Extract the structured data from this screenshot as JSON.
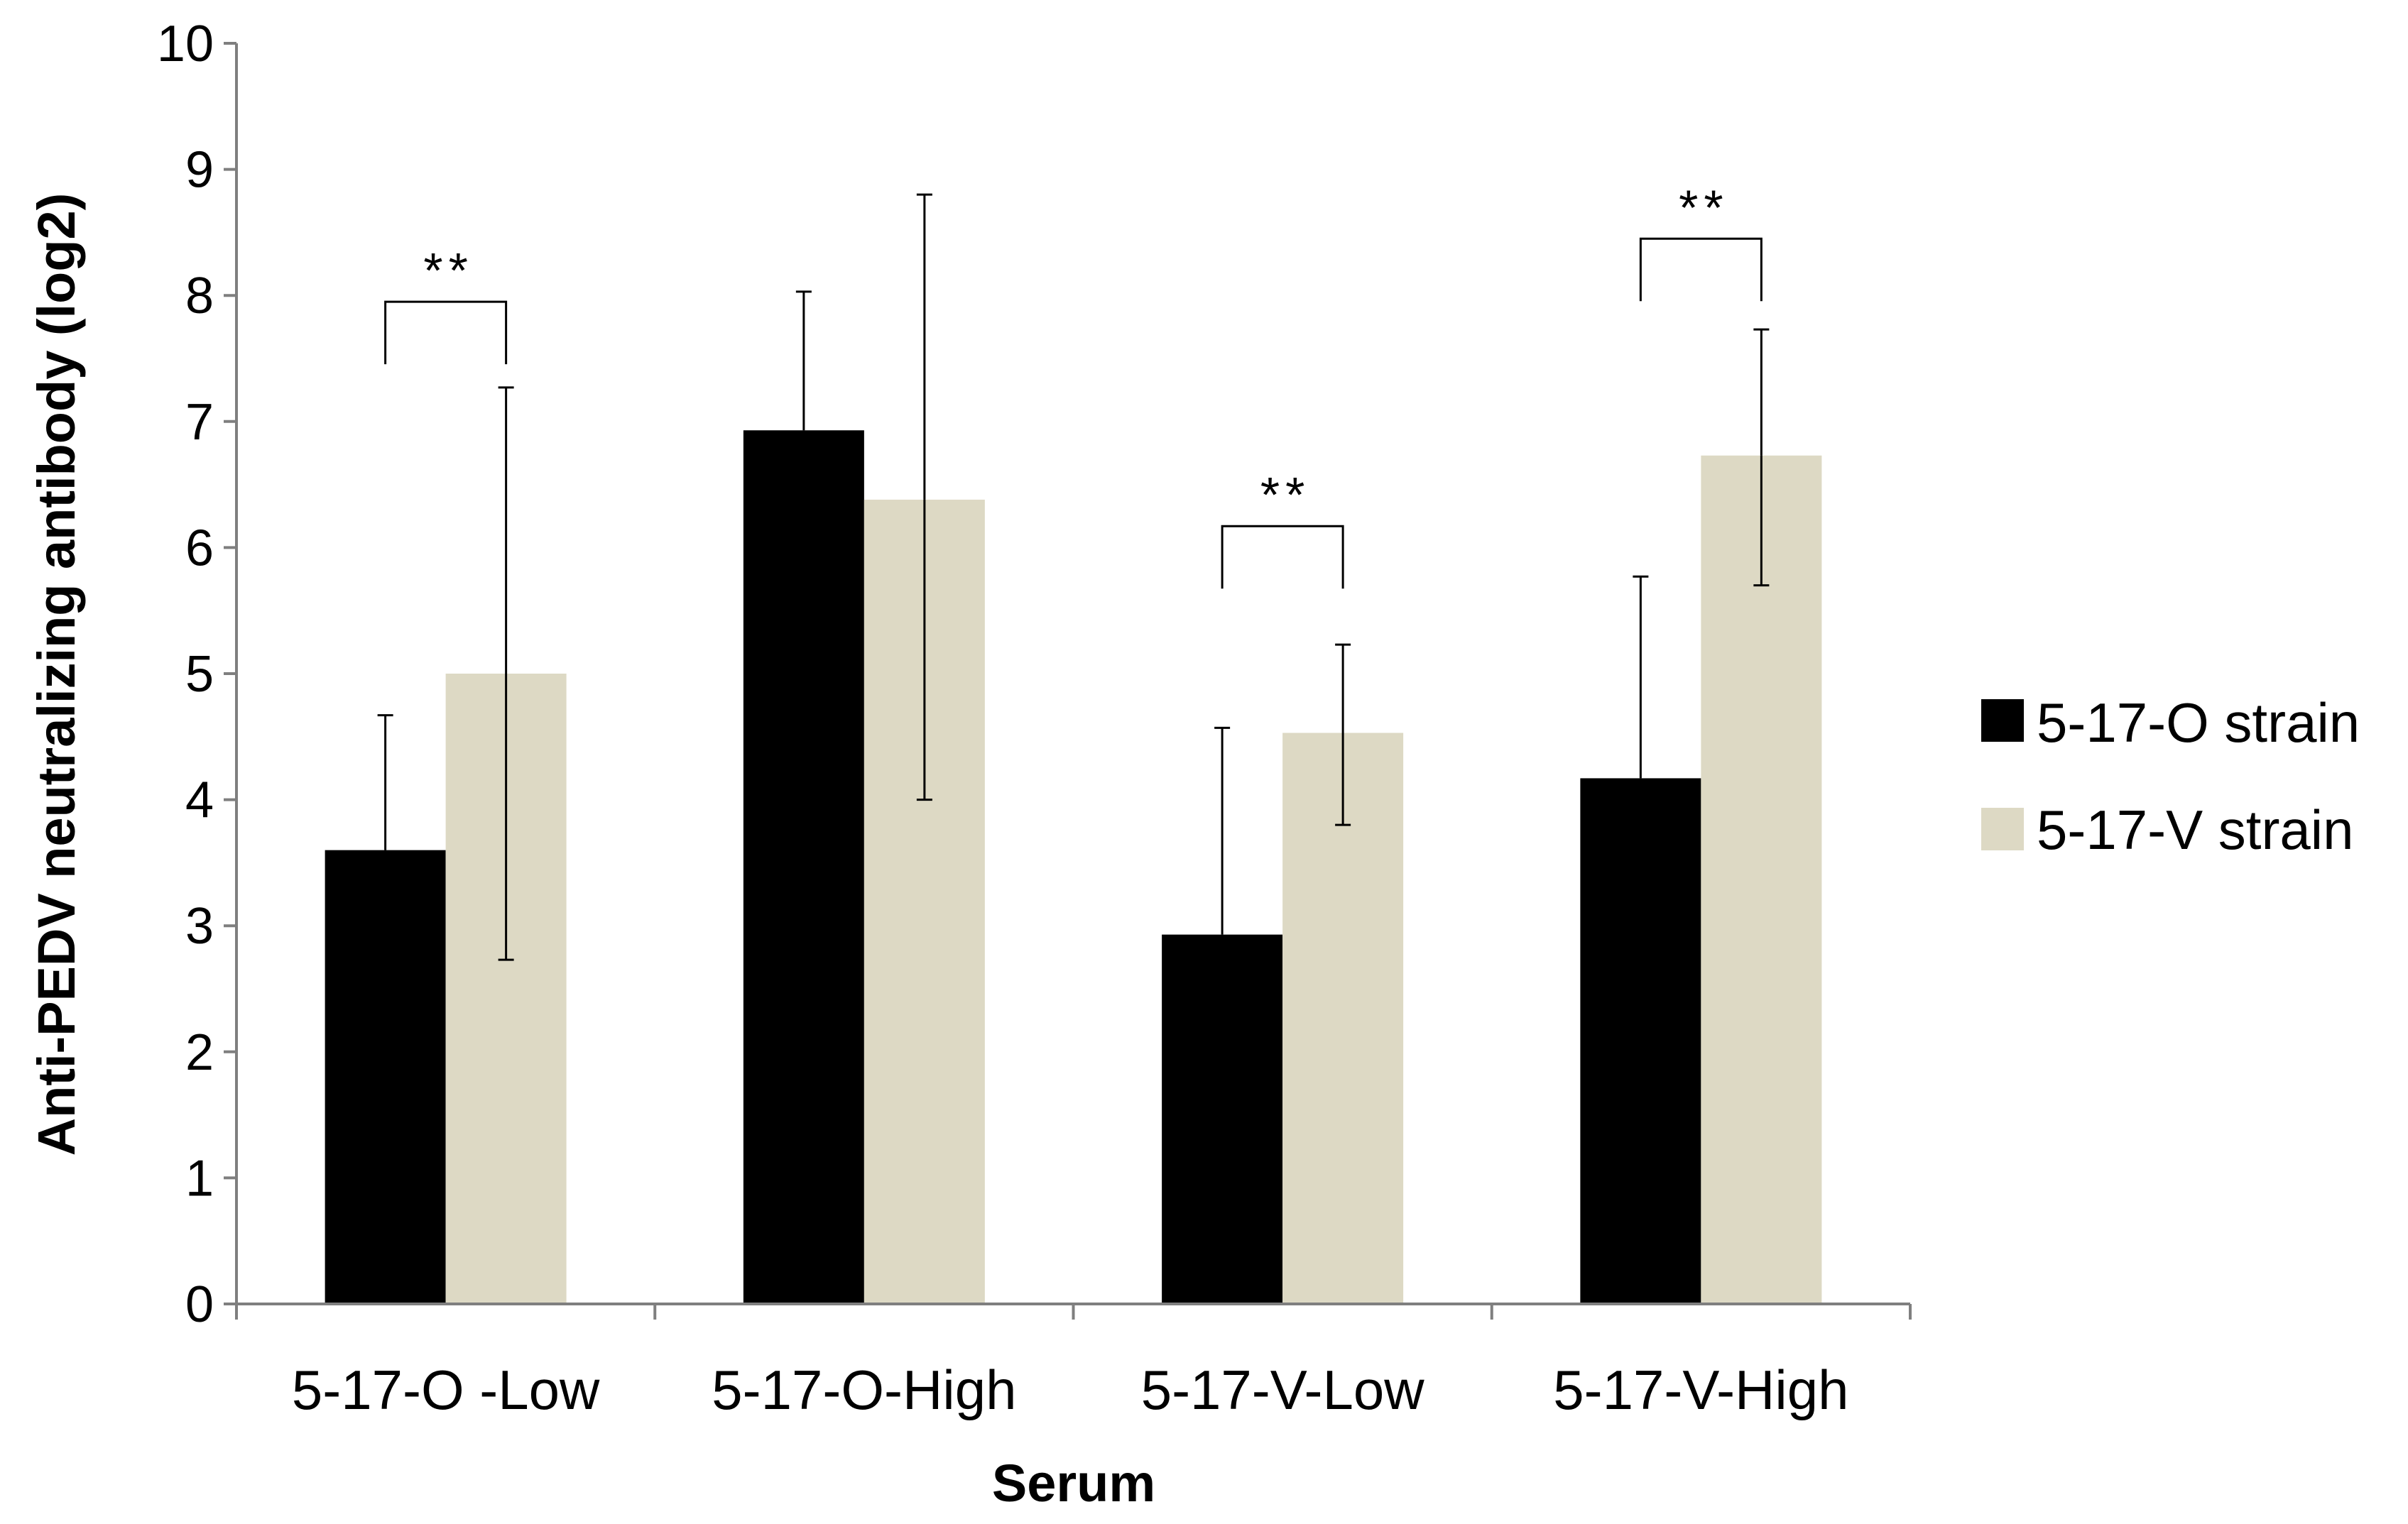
{
  "chart_data": {
    "type": "bar",
    "title": "",
    "xlabel": "Serum",
    "ylabel": "Anti-PEDV neutralizing antibody (log2)",
    "ylim": [
      0,
      10
    ],
    "yticks": [
      "0",
      "1",
      "2",
      "3",
      "4",
      "5",
      "6",
      "7",
      "8",
      "9",
      "10"
    ],
    "categories": [
      "5-17-O -Low",
      "5-17-O-High",
      "5-17-V-Low",
      "5-17-V-High"
    ],
    "series": [
      {
        "name": "5-17-O strain",
        "color": "#000000",
        "values": [
          3.6,
          6.93,
          2.93,
          4.17
        ],
        "error_upper": [
          4.67,
          8.03,
          4.57,
          5.77
        ]
      },
      {
        "name": "5-17-V strain",
        "color": "#ddd9c4",
        "values": [
          5.0,
          6.38,
          4.53,
          6.73
        ],
        "error_upper": [
          7.27,
          8.8,
          5.23,
          7.73
        ],
        "error_lower": [
          2.73,
          4.0,
          3.8,
          5.7
        ]
      }
    ],
    "significance": [
      {
        "category_index": 0,
        "label": "**",
        "level": 7.95
      },
      {
        "category_index": 2,
        "label": "**",
        "level": 6.17
      },
      {
        "category_index": 3,
        "label": "**",
        "level": 8.45
      }
    ],
    "legend_position": "right",
    "grid": false
  }
}
